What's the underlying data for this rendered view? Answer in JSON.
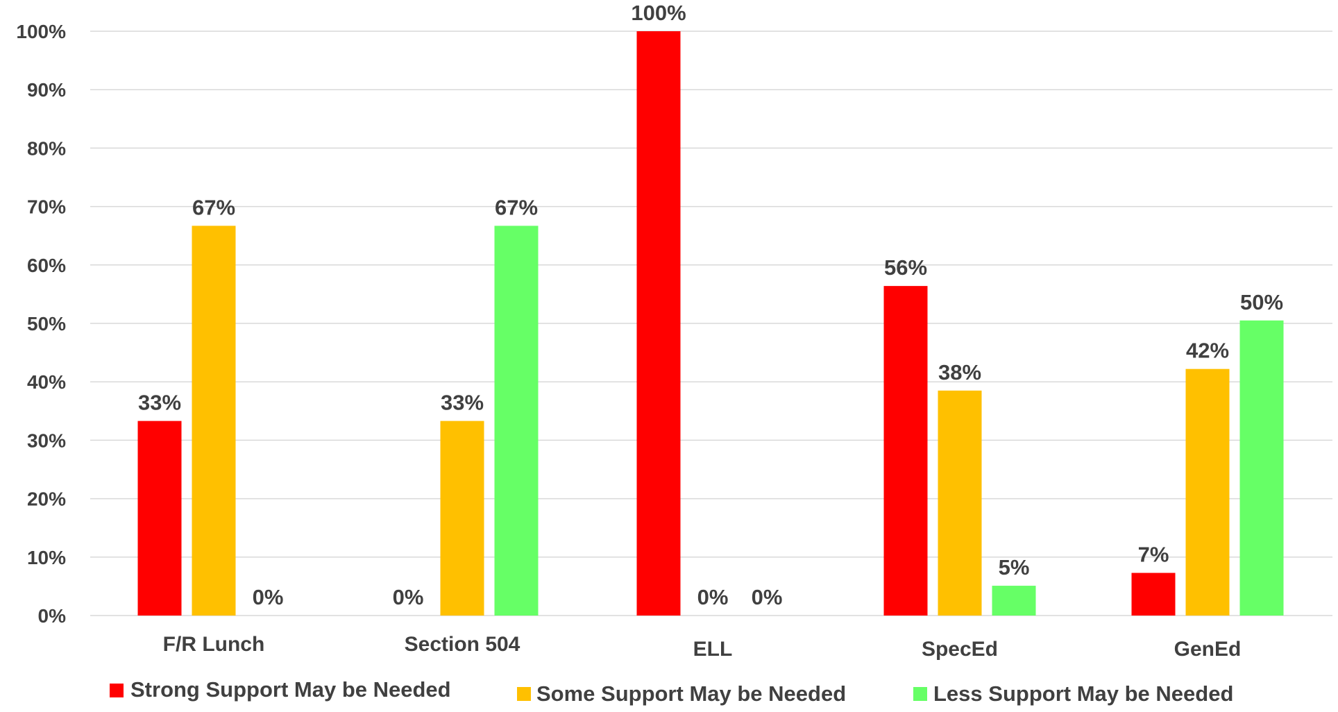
{
  "chart_data": {
    "type": "bar",
    "categories": [
      "F/R Lunch",
      "Section 504",
      "ELL",
      "SpecEd",
      "GenEd"
    ],
    "series": [
      {
        "name": "Strong Support May be Needed",
        "color": "#ff0000",
        "values": [
          33.3,
          0,
          100,
          56.4,
          7.3
        ],
        "labels": [
          "33%",
          "0%",
          "100%",
          "56%",
          "7%"
        ]
      },
      {
        "name": "Some Support May be Needed",
        "color": "#ffc000",
        "values": [
          66.7,
          33.3,
          0,
          38.5,
          42.2
        ],
        "labels": [
          "67%",
          "33%",
          "0%",
          "38%",
          "42%"
        ]
      },
      {
        "name": "Less Support May be Needed",
        "color": "#66ff66",
        "values": [
          0,
          66.7,
          0,
          5.1,
          50.5
        ],
        "labels": [
          "0%",
          "67%",
          "0%",
          "5%",
          "50%"
        ]
      }
    ],
    "y_ticks": [
      "0%",
      "10%",
      "20%",
      "30%",
      "40%",
      "50%",
      "60%",
      "70%",
      "80%",
      "90%",
      "100%"
    ],
    "ylim": [
      0,
      100
    ],
    "grid": true,
    "legend_position": "bottom",
    "title": "",
    "xlabel": "",
    "ylabel": ""
  }
}
